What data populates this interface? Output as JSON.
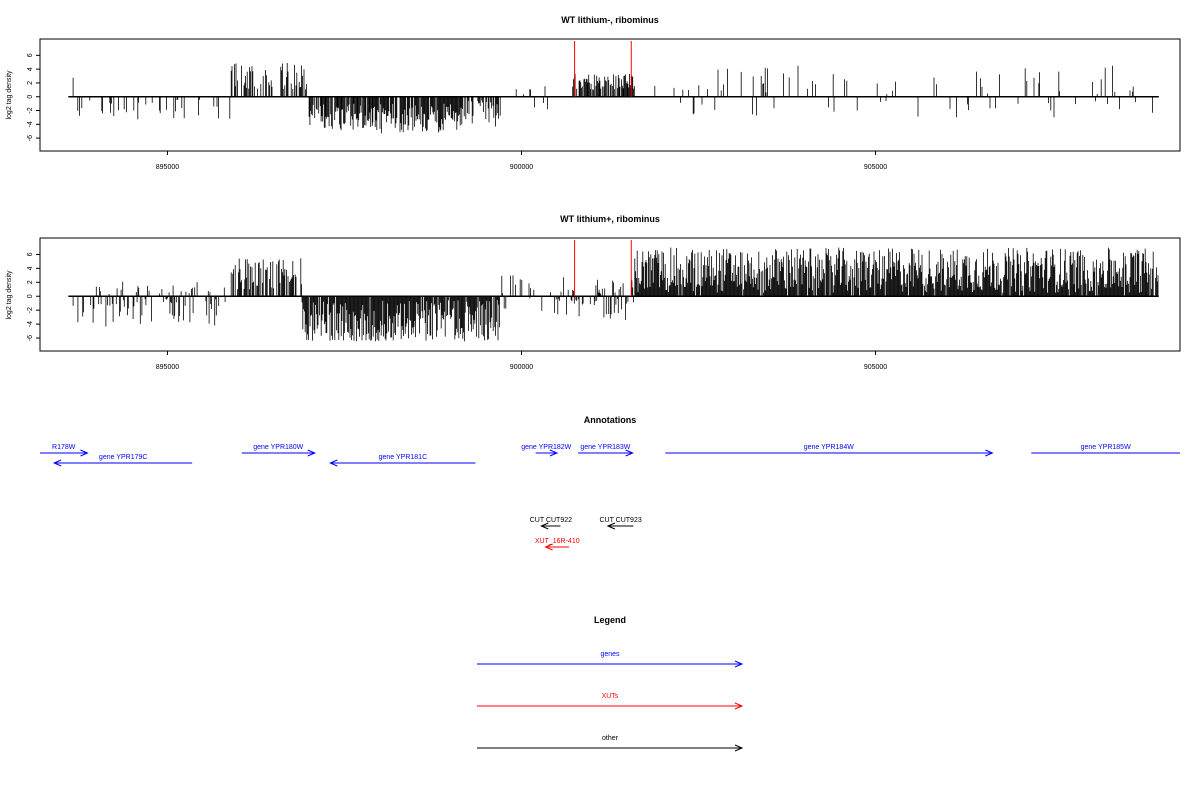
{
  "chart_data": [
    {
      "type": "bar",
      "title": "WT lithium-, ribominus",
      "ylabel": "log2 tag density",
      "xlim": [
        893200,
        909300
      ],
      "ylim": [
        -7,
        7.5
      ],
      "yticks": [
        -6,
        -4,
        -2,
        0,
        2,
        4,
        6
      ],
      "xticks": [
        895000,
        900000,
        905000
      ],
      "xtick_labels": [
        "895000",
        "900000",
        "905000"
      ],
      "series": [
        {
          "values_at": "genomic position (bp)",
          "segments": [
            {
              "from": 893600,
              "to": 893700,
              "density": 0.25,
              "min": -3.0,
              "max": 3.5
            },
            {
              "from": 893700,
              "to": 895900,
              "density": 0.22,
              "min": -3.5,
              "max": 0.0
            },
            {
              "from": 895900,
              "to": 897000,
              "density": 0.55,
              "min": 1.0,
              "max": 5.2
            },
            {
              "from": 897000,
              "to": 897900,
              "density": 0.85,
              "min": -5.0,
              "max": -1.0
            },
            {
              "from": 897900,
              "to": 899100,
              "density": 0.9,
              "min": -5.3,
              "max": -1.0
            },
            {
              "from": 899100,
              "to": 899700,
              "density": 0.6,
              "min": -4.5,
              "max": -0.5
            },
            {
              "from": 899700,
              "to": 900700,
              "density": 0.15,
              "min": -2.0,
              "max": 2.0
            },
            {
              "from": 900700,
              "to": 901600,
              "density": 0.75,
              "min": 1.0,
              "max": 3.4
            },
            {
              "from": 901600,
              "to": 909000,
              "density": 0.12,
              "min": -3.0,
              "max": 4.6
            }
          ]
        }
      ],
      "markers": [
        900750,
        901550
      ],
      "marker_color": "#ff0000"
    },
    {
      "type": "bar",
      "title": "WT lithium+, ribominus",
      "ylabel": "log2 tag density",
      "xlim": [
        893200,
        909300
      ],
      "ylim": [
        -7,
        7.5
      ],
      "yticks": [
        -6,
        -4,
        -2,
        0,
        2,
        4,
        6
      ],
      "xticks": [
        895000,
        900000,
        905000
      ],
      "xtick_labels": [
        "895000",
        "900000",
        "905000"
      ],
      "series": [
        {
          "values_at": "genomic position (bp)",
          "segments": [
            {
              "from": 893600,
              "to": 895900,
              "density": 0.45,
              "min": -4.5,
              "max": 2.2
            },
            {
              "from": 895900,
              "to": 896900,
              "density": 0.7,
              "min": 1.0,
              "max": 5.5
            },
            {
              "from": 896900,
              "to": 899700,
              "density": 0.95,
              "min": -6.5,
              "max": -0.5
            },
            {
              "from": 899700,
              "to": 900700,
              "density": 0.3,
              "min": -3.0,
              "max": 3.2
            },
            {
              "from": 900700,
              "to": 901600,
              "density": 0.55,
              "min": -3.5,
              "max": 2.4
            },
            {
              "from": 901600,
              "to": 909000,
              "density": 0.95,
              "min": 0.5,
              "max": 7.0
            }
          ]
        }
      ],
      "markers": [
        900750,
        901550
      ],
      "marker_color": "#ff0000"
    },
    {
      "type": "annotation-track",
      "title": "Annotations",
      "features": [
        {
          "label": "R178W",
          "from": 893200,
          "to": 893870,
          "strand": "+",
          "row": 0,
          "kind": "gene"
        },
        {
          "label": "gene YPR179C",
          "from": 893400,
          "to": 895350,
          "strand": "-",
          "row": 1,
          "kind": "gene"
        },
        {
          "label": "gene YPR180W",
          "from": 896050,
          "to": 897080,
          "strand": "+",
          "row": 0,
          "kind": "gene"
        },
        {
          "label": "gene YPR181C",
          "from": 897300,
          "to": 899350,
          "strand": "-",
          "row": 1,
          "kind": "gene"
        },
        {
          "label": "gene YPR182W",
          "from": 900200,
          "to": 900500,
          "strand": "+",
          "row": 0,
          "kind": "gene"
        },
        {
          "label": "gene YPR183W",
          "from": 900800,
          "to": 901570,
          "strand": "+",
          "row": 0,
          "kind": "gene"
        },
        {
          "label": "gene YPR184W",
          "from": 902030,
          "to": 906650,
          "strand": "+",
          "row": 0,
          "kind": "gene"
        },
        {
          "label": "gene YPR185W",
          "from": 907200,
          "to": 909300,
          "strand": "+",
          "row": 0,
          "kind": "gene"
        },
        {
          "label": "CUT CUT922",
          "from": 900280,
          "to": 900550,
          "strand": "-",
          "row": 2,
          "kind": "other"
        },
        {
          "label": "CUT CUT923",
          "from": 901220,
          "to": 901580,
          "strand": "-",
          "row": 2,
          "kind": "other"
        },
        {
          "label": "XUT_16R-410",
          "from": 900340,
          "to": 900670,
          "strand": "-",
          "row": 3,
          "kind": "xut"
        }
      ]
    },
    {
      "type": "legend",
      "title": "Legend",
      "entries": [
        {
          "label": "genes",
          "color": "#0000ff"
        },
        {
          "label": "XUTs",
          "color": "#ff0000"
        },
        {
          "label": "other",
          "color": "#000000"
        }
      ]
    }
  ],
  "colors": {
    "gene": "#0000ff",
    "xut": "#ff0000",
    "other": "#000000",
    "marker": "#ff0000"
  }
}
